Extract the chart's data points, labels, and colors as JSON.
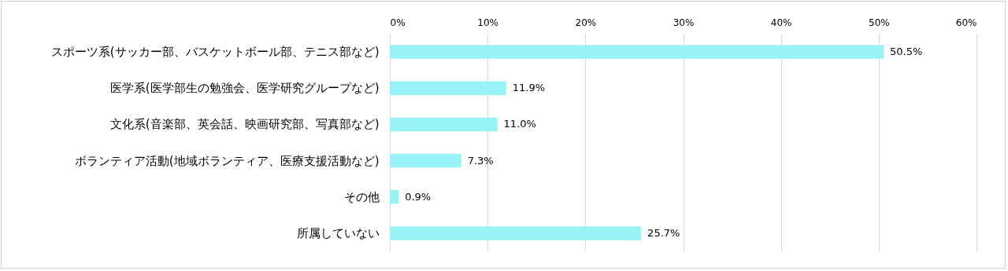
{
  "chart_data": {
    "type": "bar",
    "orientation": "horizontal",
    "categories": [
      "スポーツ系(サッカー部、バスケットボール部、テニス部など)",
      "医学系(医学部生の勉強会、医学研究グループなど)",
      "文化系(音楽部、英会話、映画研究部、写真部など)",
      "ボランティア活動(地域ボランティア、医療支援活動など)",
      "その他",
      "所属していない"
    ],
    "values": [
      50.5,
      11.9,
      11.0,
      7.3,
      0.9,
      25.7
    ],
    "value_labels": [
      "50.5%",
      "11.9%",
      "11.0%",
      "7.3%",
      "0.9%",
      "25.7%"
    ],
    "color": "#97f3f5",
    "xlim": [
      0,
      60
    ],
    "xticks": [
      {
        "value": 0,
        "label": "0%"
      },
      {
        "value": 10,
        "label": "10%"
      },
      {
        "value": 20,
        "label": "20%"
      },
      {
        "value": 30,
        "label": "30%"
      },
      {
        "value": 40,
        "label": "40%"
      },
      {
        "value": 50,
        "label": "50%"
      },
      {
        "value": 60,
        "label": "60%"
      }
    ],
    "grid": "x"
  }
}
